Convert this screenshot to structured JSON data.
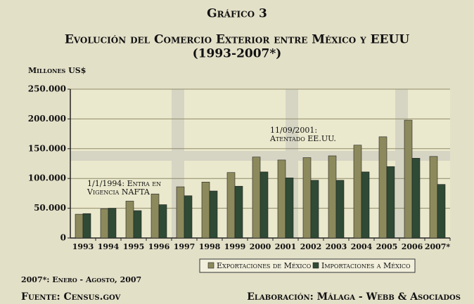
{
  "chart_data": {
    "type": "bar",
    "title": [
      "Gráfico 3",
      "Evolución del Comercio Exterior entre México y EEUU",
      "(1993-2007*)"
    ],
    "y_label": "Millones US$",
    "categories": [
      "1993",
      "1994",
      "1995",
      "1996",
      "1997",
      "1998",
      "1999",
      "2000",
      "2001",
      "2002",
      "2003",
      "2004",
      "2005",
      "2006",
      "2007*"
    ],
    "series": [
      {
        "name": "Exportaciones de México",
        "color": "#8c8a5c",
        "values": [
          40000,
          49000,
          62000,
          74000,
          86000,
          94000,
          110000,
          136000,
          131000,
          135000,
          138000,
          156000,
          170000,
          198000,
          137000
        ]
      },
      {
        "name": "Importaciones a México",
        "color": "#2f4a35",
        "values": [
          41000,
          50000,
          46000,
          56000,
          71000,
          79000,
          87000,
          111000,
          101000,
          97000,
          97000,
          111000,
          120000,
          134000,
          90000
        ]
      }
    ],
    "ylim": [
      0,
      250000
    ],
    "yticks": [
      0,
      {
        "value": 50000,
        "label": "50.000"
      },
      {
        "value": 100000,
        "label": "100.000"
      },
      {
        "value": 150000,
        "label": "150.000"
      },
      {
        "value": 200000,
        "label": "200.000"
      },
      {
        "value": 250000,
        "label": "250.000"
      }
    ],
    "grid": true,
    "legend": "bottom",
    "annotations": [
      [
        "1/1/1994: Entra en",
        "Vigencia NAFTA"
      ],
      [
        "11/09/2001:",
        "Atentado EE.UU."
      ]
    ],
    "footnote": "2007*: Enero - Agosto, 2007",
    "source": "Fuente: Census.gov",
    "credit": "Elaboración: Málaga - Webb & Asociados"
  }
}
